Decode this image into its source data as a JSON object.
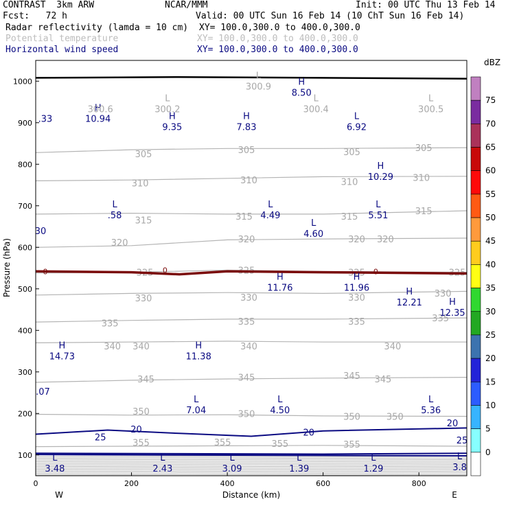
{
  "header": {
    "model": "CONTRAST  3km ARW",
    "center": "NCAR/MMM",
    "init": "Init: 00 UTC Thu 13 Feb 14",
    "fcst": "Fcst:   72 h",
    "valid": "Valid: 00 UTC Sun 16 Feb 14 (10 ChT Sun 16 Feb 14)",
    "fields": [
      {
        "name": "Radar reflectivity (lamda = 10 cm)",
        "xy": "XY= 100.0,300.0 to 400.0,300.0"
      },
      {
        "name": "Potential temperature",
        "xy": "XY= 100.0,300.0 to 400.0,300.0"
      },
      {
        "name": "Horizontal wind speed",
        "xy": "XY= 100.0,300.0 to 400.0,300.0"
      }
    ]
  },
  "colors": {
    "wind": "#0a0a82",
    "theta": "#b4b4b4",
    "freezing": "#7a0a0a",
    "ground": "#000000"
  },
  "chart_data": {
    "type": "cross-section",
    "xlabel": "Distance (km)",
    "ylabel": "Pressure (hPa)",
    "xlim": [
      0,
      900
    ],
    "ylim": [
      1050,
      50
    ],
    "x_ticks": [
      "0",
      "200",
      "400",
      "600",
      "800"
    ],
    "x_tick_values": [
      0,
      200,
      400,
      600,
      800
    ],
    "y_ticks": [
      "100",
      "200",
      "300",
      "400",
      "500",
      "600",
      "700",
      "800",
      "900",
      "1000"
    ],
    "y_tick_values": [
      100,
      200,
      300,
      400,
      500,
      600,
      700,
      800,
      900,
      1000
    ],
    "direction_left": "W",
    "direction_right": "E",
    "theta_contours": [
      {
        "value": 355,
        "points": [
          [
            0,
            120
          ],
          [
            200,
            121
          ],
          [
            400,
            122
          ],
          [
            600,
            123
          ],
          [
            900,
            121
          ]
        ],
        "labels": [
          [
            220,
            130,
            "355"
          ],
          [
            390,
            131,
            "355"
          ],
          [
            510,
            128,
            "355"
          ],
          [
            660,
            126,
            "355"
          ]
        ]
      },
      {
        "value": 350,
        "points": [
          [
            0,
            198
          ],
          [
            200,
            196
          ],
          [
            400,
            197
          ],
          [
            600,
            194
          ],
          [
            900,
            193
          ]
        ],
        "labels": [
          [
            220,
            205,
            "350"
          ],
          [
            440,
            200,
            "350"
          ],
          [
            660,
            193,
            "350"
          ],
          [
            750,
            193,
            "350"
          ]
        ]
      },
      {
        "value": 345,
        "points": [
          [
            0,
            275
          ],
          [
            200,
            280
          ],
          [
            400,
            283
          ],
          [
            600,
            285
          ],
          [
            900,
            287
          ]
        ],
        "labels": [
          [
            230,
            283,
            "345"
          ],
          [
            440,
            287,
            "345"
          ],
          [
            660,
            291,
            "345"
          ],
          [
            725,
            283,
            "345"
          ]
        ]
      },
      {
        "value": 340,
        "points": [
          [
            0,
            370
          ],
          [
            200,
            372
          ],
          [
            400,
            374
          ],
          [
            600,
            372
          ],
          [
            900,
            372
          ]
        ],
        "labels": [
          [
            160,
            362,
            "340"
          ],
          [
            220,
            362,
            "340"
          ],
          [
            445,
            362,
            "340"
          ],
          [
            745,
            362,
            "340"
          ]
        ]
      },
      {
        "value": 335,
        "points": [
          [
            0,
            420
          ],
          [
            200,
            424
          ],
          [
            400,
            427
          ],
          [
            600,
            427
          ],
          [
            900,
            430
          ]
        ],
        "labels": [
          [
            155,
            418,
            "335"
          ],
          [
            440,
            422,
            "335"
          ],
          [
            670,
            422,
            "335"
          ],
          [
            845,
            430,
            "335"
          ]
        ]
      },
      {
        "value": 330,
        "points": [
          [
            0,
            485
          ],
          [
            200,
            489
          ],
          [
            400,
            491
          ],
          [
            600,
            489
          ],
          [
            900,
            494
          ]
        ],
        "labels": [
          [
            225,
            478,
            "330"
          ],
          [
            445,
            480,
            "330"
          ],
          [
            670,
            480,
            "330"
          ],
          [
            850,
            490,
            "330"
          ]
        ]
      },
      {
        "value": 325,
        "points": [
          [
            0,
            538
          ],
          [
            200,
            540
          ],
          [
            400,
            545
          ],
          [
            600,
            542
          ],
          [
            900,
            540
          ]
        ],
        "labels": [
          [
            228,
            540,
            "325"
          ],
          [
            440,
            545,
            "325"
          ],
          [
            670,
            540,
            "325"
          ],
          [
            880,
            540,
            "325"
          ]
        ]
      },
      {
        "value": 320,
        "points": [
          [
            0,
            600
          ],
          [
            200,
            604
          ],
          [
            400,
            618
          ],
          [
            600,
            620
          ],
          [
            900,
            622
          ]
        ],
        "labels": [
          [
            175,
            612,
            "320"
          ],
          [
            440,
            620,
            "320"
          ],
          [
            670,
            620,
            "320"
          ],
          [
            730,
            620,
            "320"
          ]
        ]
      },
      {
        "value": 315,
        "points": [
          [
            0,
            680
          ],
          [
            200,
            682
          ],
          [
            400,
            680
          ],
          [
            600,
            680
          ],
          [
            900,
            688
          ]
        ],
        "labels": [
          [
            225,
            666,
            "315"
          ],
          [
            435,
            675,
            "315"
          ],
          [
            655,
            675,
            "315"
          ],
          [
            810,
            688,
            "315"
          ]
        ]
      },
      {
        "value": 310,
        "points": [
          [
            0,
            760
          ],
          [
            200,
            762
          ],
          [
            400,
            766
          ],
          [
            600,
            770
          ],
          [
            900,
            771
          ]
        ],
        "labels": [
          [
            218,
            755,
            "310"
          ],
          [
            445,
            762,
            "310"
          ],
          [
            655,
            758,
            "310"
          ],
          [
            805,
            768,
            "310"
          ]
        ]
      },
      {
        "value": 305,
        "points": [
          [
            0,
            828
          ],
          [
            200,
            835
          ],
          [
            400,
            838
          ],
          [
            600,
            838
          ],
          [
            900,
            840
          ]
        ],
        "labels": [
          [
            225,
            825,
            "305"
          ],
          [
            440,
            835,
            "305"
          ],
          [
            660,
            830,
            "305"
          ],
          [
            810,
            840,
            "305"
          ]
        ]
      }
    ],
    "wind_contours": [
      {
        "value": 30,
        "points": [
          [
            0,
            101
          ],
          [
            300,
            100
          ],
          [
            600,
            99
          ],
          [
            900,
            98
          ]
        ]
      },
      {
        "value": 25,
        "points": [
          [
            0,
            104
          ],
          [
            300,
            103
          ],
          [
            600,
            102
          ],
          [
            900,
            104
          ]
        ],
        "labels": [
          [
            135,
            143,
            "25"
          ],
          [
            890,
            136,
            "25"
          ]
        ]
      },
      {
        "value": 20,
        "points": [
          [
            0,
            150
          ],
          [
            150,
            160
          ],
          [
            300,
            152
          ],
          [
            450,
            145
          ],
          [
            600,
            158
          ],
          [
            900,
            165
          ]
        ],
        "labels": [
          [
            210,
            162,
            "20"
          ],
          [
            570,
            155,
            "20"
          ],
          [
            870,
            177,
            "20"
          ]
        ]
      }
    ],
    "freezing_level": {
      "points": [
        [
          0,
          542
        ],
        [
          200,
          540
        ],
        [
          300,
          535
        ],
        [
          400,
          542
        ],
        [
          600,
          540
        ],
        [
          900,
          537
        ]
      ],
      "labels": [
        [
          20,
          542,
          "0"
        ],
        [
          270,
          545,
          "0"
        ],
        [
          710,
          542,
          "0"
        ]
      ]
    },
    "ground_line": {
      "points": [
        [
          0,
          1008
        ],
        [
          300,
          1010
        ],
        [
          600,
          1008
        ],
        [
          900,
          1006
        ]
      ]
    },
    "extrema": [
      {
        "type": "L",
        "value": "3.48",
        "x": 40,
        "y": 80
      },
      {
        "type": "L",
        "value": "2.43",
        "x": 265,
        "y": 80
      },
      {
        "type": "L",
        "value": "3.09",
        "x": 410,
        "y": 80
      },
      {
        "type": "L",
        "value": "1.39",
        "x": 550,
        "y": 80
      },
      {
        "type": "L",
        "value": "1.29",
        "x": 705,
        "y": 80
      },
      {
        "type": "L",
        "value": "3.8",
        "x": 885,
        "y": 83
      },
      {
        "type": "L",
        "value": "7.04",
        "x": 335,
        "y": 220
      },
      {
        "type": "L",
        "value": "4.50",
        "x": 510,
        "y": 220
      },
      {
        "type": "L",
        "value": "5.36",
        "x": 825,
        "y": 220
      },
      {
        "type": "",
        "value": ".07",
        "x": 15,
        "y": 265
      },
      {
        "type": "H",
        "value": "14.73",
        "x": 55,
        "y": 350
      },
      {
        "type": "H",
        "value": "11.38",
        "x": 340,
        "y": 350
      },
      {
        "type": "H",
        "value": "12.35",
        "x": 870,
        "y": 455
      },
      {
        "type": "H",
        "value": "12.21",
        "x": 780,
        "y": 480
      },
      {
        "type": "H",
        "value": "11.76",
        "x": 510,
        "y": 515
      },
      {
        "type": "H",
        "value": "11.96",
        "x": 670,
        "y": 515
      },
      {
        "type": "",
        "value": "30",
        "x": 10,
        "y": 652
      },
      {
        "type": "L",
        "value": "4.60",
        "x": 580,
        "y": 645
      },
      {
        "type": "L",
        "value": ".58",
        "x": 165,
        "y": 690
      },
      {
        "type": "L",
        "value": "4.49",
        "x": 490,
        "y": 690
      },
      {
        "type": "L",
        "value": "5.51",
        "x": 715,
        "y": 690
      },
      {
        "type": "H",
        "value": "10.29",
        "x": 720,
        "y": 782
      },
      {
        "type": "H",
        "value": "9.35",
        "x": 285,
        "y": 902
      },
      {
        "type": "H",
        "value": "7.83",
        "x": 440,
        "y": 902
      },
      {
        "type": "L",
        "value": "6.92",
        "x": 670,
        "y": 902
      },
      {
        "type": "",
        "value": ".33",
        "x": 20,
        "y": 922
      },
      {
        "type": "H",
        "value": "10.94",
        "x": 130,
        "y": 922
      },
      {
        "type": "H",
        "value": "8.50",
        "x": 555,
        "y": 985
      }
    ],
    "theta_extrema": [
      {
        "type": "",
        "value": "300.6",
        "x": 135,
        "y": 945
      },
      {
        "type": "L",
        "value": "300.2",
        "x": 275,
        "y": 945
      },
      {
        "type": "L",
        "value": "300.4",
        "x": 585,
        "y": 945
      },
      {
        "type": "L",
        "value": "300.5",
        "x": 825,
        "y": 945
      },
      {
        "type": "L",
        "value": "300.9",
        "x": 465,
        "y": 1000
      }
    ],
    "colorbar": {
      "unit": "dBZ",
      "levels": [
        "0",
        "5",
        "10",
        "15",
        "20",
        "25",
        "30",
        "35",
        "40",
        "45",
        "50",
        "55",
        "60",
        "65",
        "70",
        "75"
      ],
      "colors": [
        "#ffffff",
        "#87ffff",
        "#37b4ff",
        "#2c5cff",
        "#2323d8",
        "#3c73af",
        "#22a822",
        "#30d830",
        "#ffff14",
        "#ffcc1e",
        "#ff9a3c",
        "#ff5a14",
        "#ff0a0a",
        "#c80a0a",
        "#aa325a",
        "#7a2ca0",
        "#c080c0"
      ]
    }
  }
}
